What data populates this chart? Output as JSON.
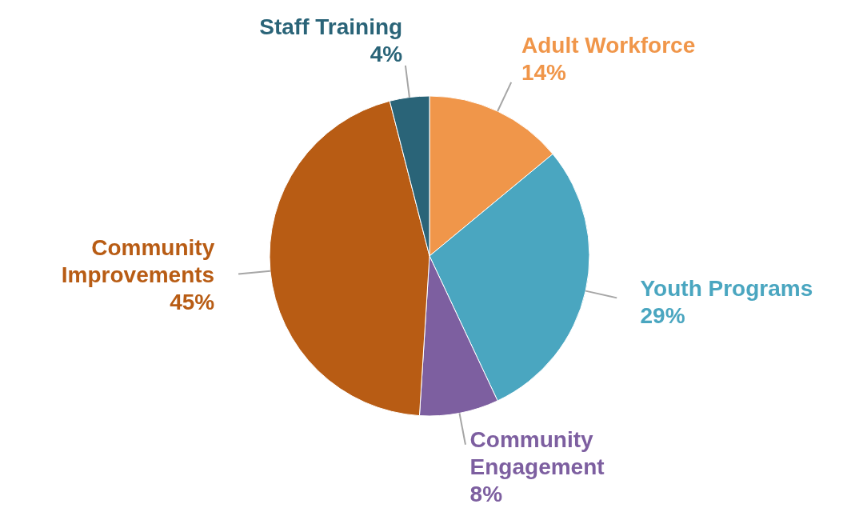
{
  "chart_data": {
    "type": "pie",
    "categories": [
      "Adult Workforce",
      "Youth Programs",
      "Community Engagement",
      "Community Improvements",
      "Staff Training"
    ],
    "values": [
      14,
      29,
      8,
      45,
      4
    ],
    "value_labels": [
      "14%",
      "29%",
      "8%",
      "45%",
      "4%"
    ],
    "colors": [
      "#f0964a",
      "#4aa6c0",
      "#7d5fa0",
      "#b85c14",
      "#2a6478"
    ],
    "legend": false
  }
}
